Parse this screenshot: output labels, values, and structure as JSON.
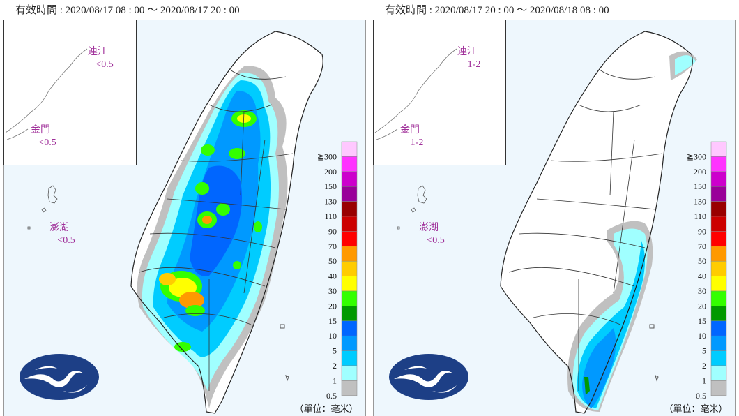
{
  "panels": [
    {
      "valid_time": "有效時間 : 2020/08/17 08 : 00 ～ 2020/08/17 20 : 00",
      "islands": [
        {
          "name": "連江",
          "value": "<0.5"
        },
        {
          "name": "金門",
          "value": "<0.5"
        },
        {
          "name": "澎湖",
          "value": "<0.5"
        }
      ]
    },
    {
      "valid_time": "有效時間 : 2020/08/17 20 : 00 ～ 2020/08/18 08 : 00",
      "islands": [
        {
          "name": "連江",
          "value": "1-2"
        },
        {
          "name": "金門",
          "value": "1-2"
        },
        {
          "name": "澎湖",
          "value": "<0.5"
        }
      ]
    }
  ],
  "legend": {
    "labels": [
      "≧300",
      "200",
      "150",
      "130",
      "110",
      "90",
      "70",
      "50",
      "40",
      "30",
      "20",
      "15",
      "10",
      "5",
      "2",
      "1",
      "0.5"
    ],
    "colors": [
      "#ffc8ff",
      "#ff33ff",
      "#cc00cc",
      "#990099",
      "#990000",
      "#cc0000",
      "#ff0000",
      "#ff9900",
      "#ffcc00",
      "#ffff00",
      "#33ff00",
      "#009900",
      "#0066ff",
      "#0099ff",
      "#00ccff",
      "#a0ffff",
      "#c0c0c0"
    ]
  },
  "unit": "（單位：毫米）"
}
